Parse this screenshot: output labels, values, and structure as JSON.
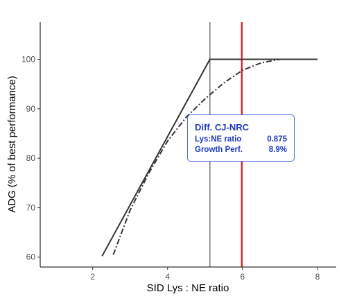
{
  "chart_data": {
    "type": "line",
    "xlabel": "SID Lys : NE ratio",
    "ylabel": "ADG (% of best performance)",
    "xlim": [
      0.6,
      8.5
    ],
    "ylim": [
      58.0,
      107.5
    ],
    "x_ticks": [
      2,
      4,
      6,
      8
    ],
    "y_ticks": [
      60,
      70,
      80,
      90,
      100
    ],
    "grid": false,
    "series": [
      {
        "style": "solid",
        "color": "#333333",
        "x": [
          2.25,
          5.13,
          8.0
        ],
        "y": [
          60.2,
          100,
          100
        ]
      },
      {
        "style": "dotdash",
        "color": "#333333",
        "x": [
          2.55,
          3.0,
          3.5,
          4.0,
          4.5,
          5.0,
          5.5,
          6.0,
          6.5,
          7.0,
          7.5,
          8.0
        ],
        "y": [
          60.5,
          69.5,
          77.0,
          83.5,
          88.3,
          92.0,
          95.2,
          97.8,
          99.3,
          100.0,
          100.0,
          100.0
        ]
      }
    ],
    "vlines": [
      {
        "x": 5.13,
        "color": "#333333",
        "width": 1
      },
      {
        "x": 5.98,
        "color": "#e3121b",
        "width": 2.2
      }
    ]
  },
  "annotation": {
    "title": "Diff. CJ-NRC",
    "rows": [
      {
        "label": "Lys:NE ratio",
        "value": "0.875"
      },
      {
        "label": "Growth Perf.",
        "value": "8.9%"
      }
    ]
  }
}
